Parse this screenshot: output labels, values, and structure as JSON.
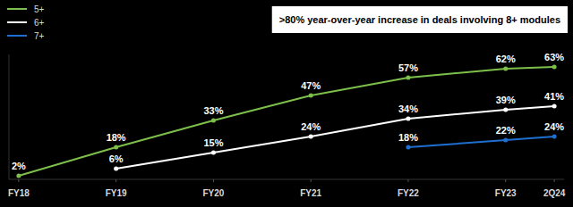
{
  "chart_data": {
    "type": "line",
    "title": ">80% year-over-year increase in deals involving 8+ modules",
    "x": [
      18,
      19,
      20,
      21,
      22,
      23,
      23.5
    ],
    "xlim": [
      17.9,
      23.6
    ],
    "xticks": [
      {
        "value": 18,
        "label": "FY18"
      },
      {
        "value": 19,
        "label": "FY19"
      },
      {
        "value": 20,
        "label": "FY20"
      },
      {
        "value": 21,
        "label": "FY21"
      },
      {
        "value": 22,
        "label": "FY22"
      },
      {
        "value": 23,
        "label": "FY23"
      },
      {
        "value": 23.5,
        "label": "2Q24"
      }
    ],
    "ylim": [
      0,
      70
    ],
    "tick_labels": "x",
    "grid": false,
    "legend": "top-left",
    "data_labels": true,
    "marker": "circle",
    "series": [
      {
        "name": "5+",
        "color": "#7cbf4a",
        "values": [
          2,
          18,
          33,
          47,
          57,
          62,
          63
        ],
        "value_labels": [
          "2%",
          "18%",
          "33%",
          "47%",
          "57%",
          "62%",
          "63%"
        ]
      },
      {
        "name": "6+",
        "color": "#ffffff",
        "values": [
          null,
          6,
          15,
          24,
          34,
          39,
          41
        ],
        "value_labels": [
          null,
          "6%",
          "15%",
          "24%",
          "34%",
          "39%",
          "41%"
        ]
      },
      {
        "name": "7+",
        "color": "#1f6fd1",
        "values": [
          null,
          null,
          null,
          null,
          18,
          22,
          24
        ],
        "value_labels": [
          null,
          null,
          null,
          null,
          "18%",
          "22%",
          "24%"
        ]
      }
    ]
  }
}
